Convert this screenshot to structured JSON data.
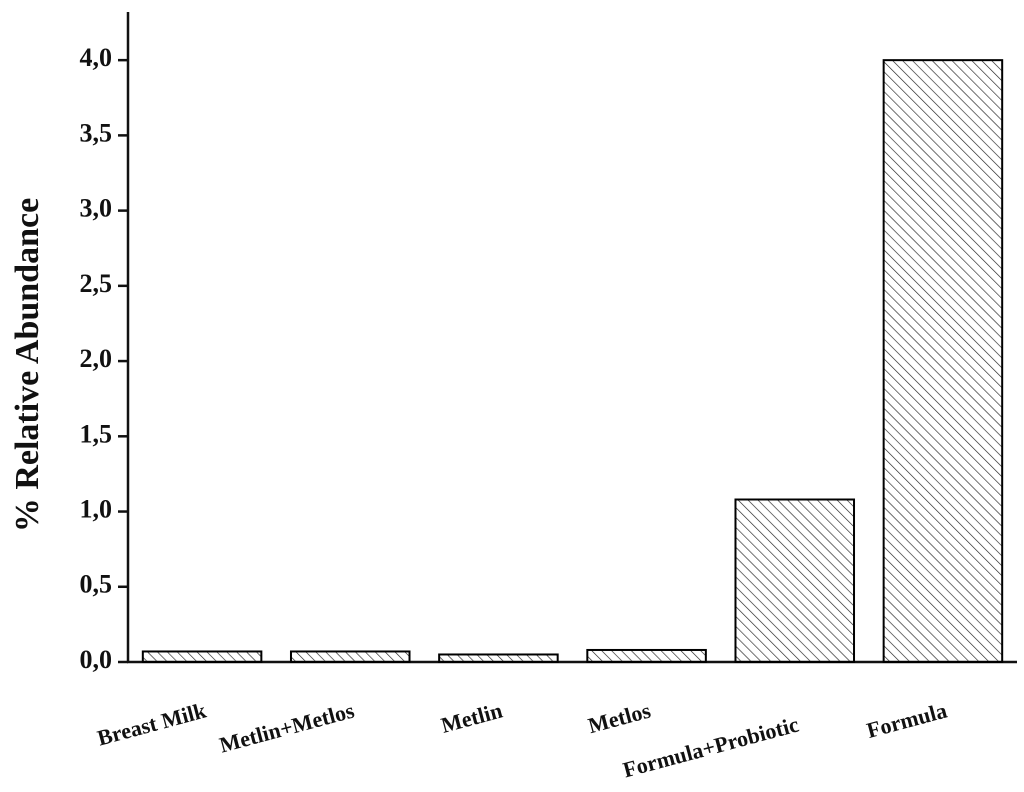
{
  "chart_data": {
    "type": "bar",
    "y_label": "% Relative Abundance",
    "categories": [
      "Breast Milk",
      "Metlin+Metlos",
      "Metlin",
      "Metlos",
      "Formula+Probiotic",
      "Formula"
    ],
    "values": [
      0.07,
      0.07,
      0.05,
      0.08,
      1.08,
      4.0
    ],
    "color": "#000000",
    "ylim": [
      0,
      4.32
    ],
    "yticks": [
      {
        "value": 0,
        "label": "0,0"
      },
      {
        "value": 0.5,
        "label": "0,5"
      },
      {
        "value": 1,
        "label": "1,0"
      },
      {
        "value": 1.5,
        "label": "1,5"
      },
      {
        "value": 2,
        "label": "2,0"
      },
      {
        "value": 2.5,
        "label": "2,5"
      },
      {
        "value": 3,
        "label": "3,0"
      },
      {
        "value": 3.5,
        "label": "3,5"
      },
      {
        "value": 4,
        "label": "4,0"
      }
    ],
    "grid": false
  }
}
